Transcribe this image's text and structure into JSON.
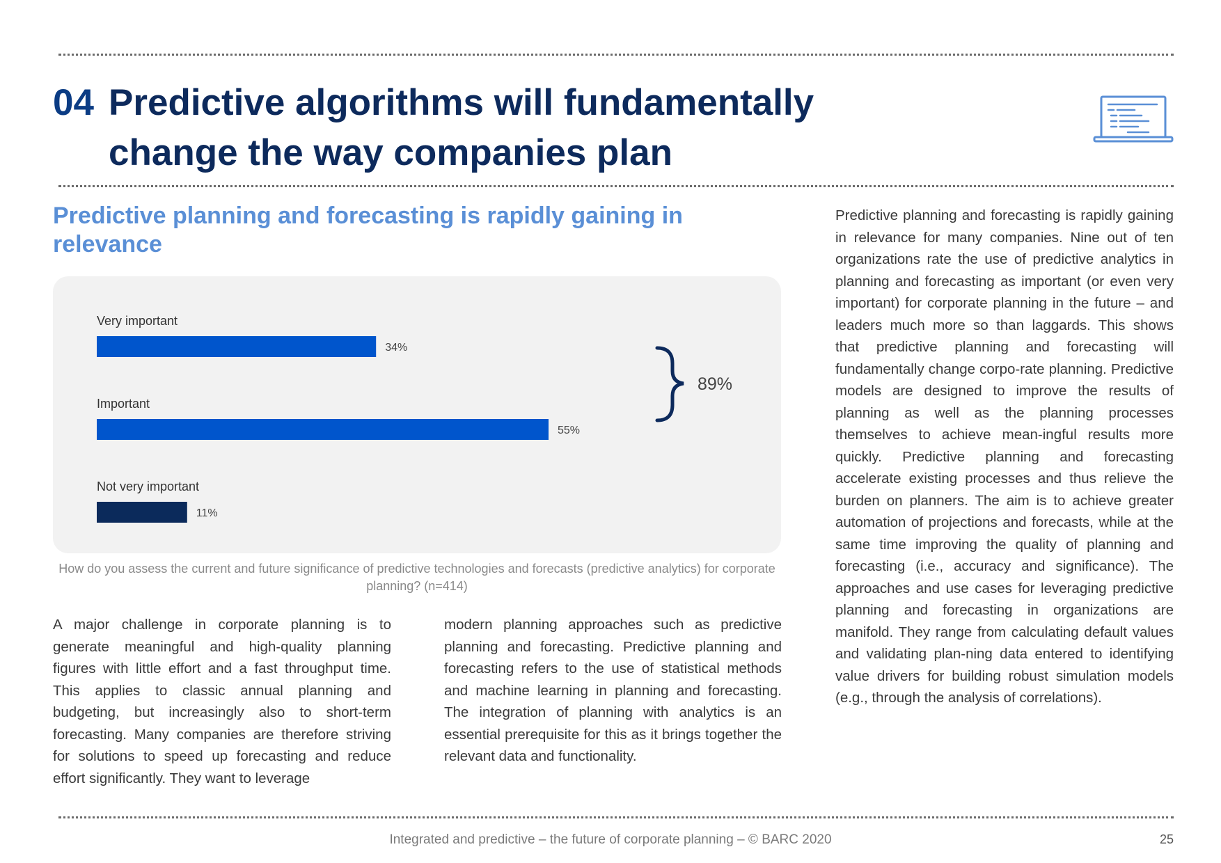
{
  "section": {
    "number": "04",
    "title_line1": "Predictive algorithms will fundamentally",
    "title_line2": "change the way companies plan",
    "icon": "laptop-icon"
  },
  "subheading": "Predictive planning and forecasting is rapidly gaining in relevance",
  "chart_data": {
    "type": "bar",
    "orientation": "horizontal",
    "categories": [
      "Very important",
      "Important",
      "Not very important"
    ],
    "values": [
      34,
      55,
      11
    ],
    "value_labels": [
      "34%",
      "55%",
      "11%"
    ],
    "colors": [
      "#0055cc",
      "#0055cc",
      "#0b2a5b"
    ],
    "xlim": [
      0,
      100
    ],
    "grid": false,
    "annotation": {
      "label": "89%",
      "groups": [
        "Very important",
        "Important"
      ]
    }
  },
  "caption": "How do you assess the current and future significance of predictive technologies and forecasts (predictive analytics) for corporate planning? (n=414)",
  "body": {
    "left_column": "A major challenge in corporate planning is to generate meaningful and high-quality planning figures with little effort and a fast throughput time. This applies to classic annual planning and budgeting, but increasingly also to short-term forecasting. Many companies are therefore striving for solutions to speed up forecasting and reduce effort significantly. They want to leverage",
    "middle_column": "modern planning approaches such as predictive planning and forecasting. Predictive planning and forecasting refers to the use of statistical methods and machine learning in planning and forecasting. The integration of planning with analytics is an essential prerequisite for this as it brings together the relevant data and functionality.",
    "right_column": "Predictive planning and forecasting is rapidly gaining in relevance for many companies. Nine out of ten organizations rate the use of predictive analytics in planning and forecasting as important (or even very important) for corporate planning in the future – and leaders much more so than laggards. This shows that predictive planning and forecasting will fundamentally change corpo-rate planning. Predictive models are designed to improve the results of planning as well as the planning processes themselves to achieve mean-ingful results more quickly. Predictive planning and forecasting accelerate existing processes and thus relieve the burden on planners. The aim is to achieve greater automation of projections and forecasts, while at the same time improving the quality of planning and forecasting (i.e., accuracy and significance). The approaches and use cases for leveraging predictive planning and forecasting in organizations are manifold. They range from calculating default values and validating plan-ning data entered to identifying value drivers for building robust simulation models (e.g., through the analysis of correlations)."
  },
  "footer": {
    "text": "Integrated and predictive – the future of corporate planning  – © BARC 2020",
    "page_number": "25"
  }
}
